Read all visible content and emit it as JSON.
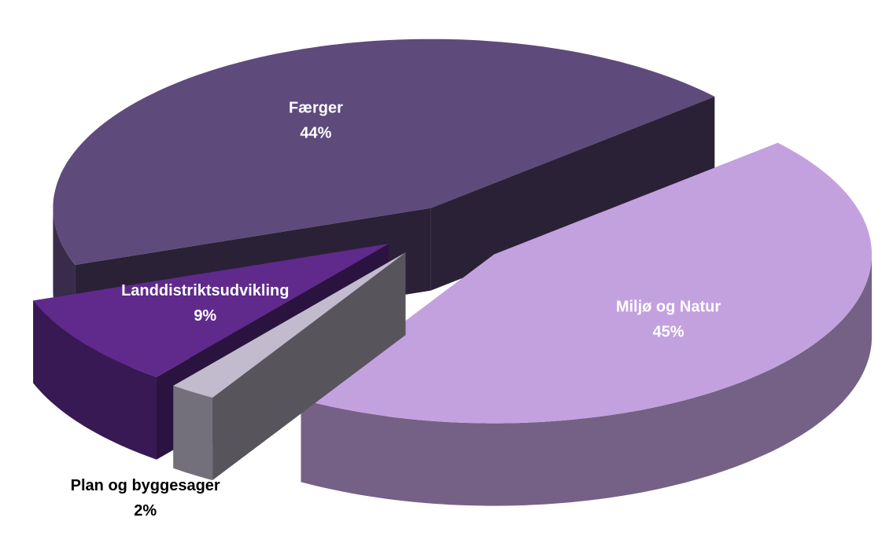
{
  "chart_data": {
    "type": "pie",
    "categories": [
      "Miljø og Natur",
      "Plan og byggesager",
      "Landdistriktsudvikling",
      "Færger"
    ],
    "values": [
      45,
      2,
      9,
      44
    ],
    "value_labels": [
      "45%",
      "2%",
      "9%",
      "44%"
    ],
    "colors": [
      "#c3a1df",
      "#c2bacd",
      "#5f2a8c",
      "#5e4a7b"
    ]
  }
}
